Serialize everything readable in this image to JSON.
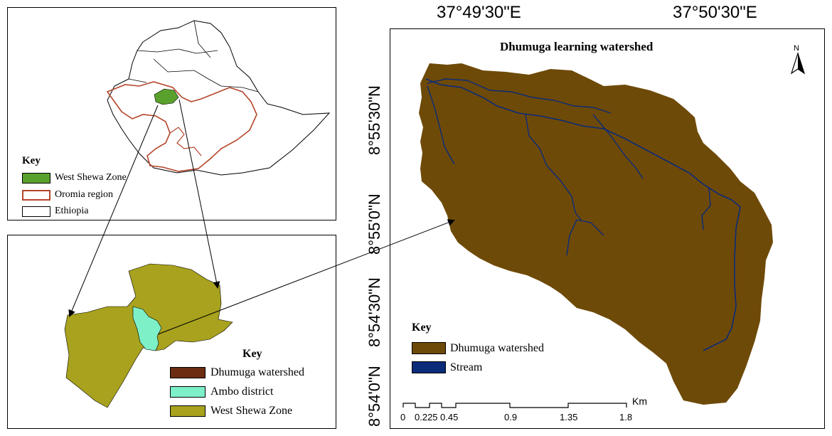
{
  "ethiopia_panel": {
    "key_title": "Key",
    "legend": [
      {
        "label": "West Shewa Zone",
        "fill": "#5aa02c",
        "border": "#000000"
      },
      {
        "label": "Oromia region",
        "fill": "#ffffff",
        "border": "#b5452a"
      },
      {
        "label": "Ethiopia",
        "fill": "#ffffff",
        "border": "#000000"
      }
    ]
  },
  "zone_panel": {
    "key_title": "Key",
    "legend": [
      {
        "label": "Dhumuga watershed",
        "fill": "#6b2c12"
      },
      {
        "label": "Ambo district",
        "fill": "#7ef0c8"
      },
      {
        "label": "West Shewa Zone",
        "fill": "#a8a21e"
      }
    ]
  },
  "watershed_panel": {
    "title": "Dhumuga learning watershed",
    "north_label": "N",
    "key_title": "Key",
    "legend": [
      {
        "label": "Dhumuga watershed",
        "fill": "#6e4a08"
      },
      {
        "label": "Stream",
        "fill": "#0a2a7a"
      }
    ],
    "longitude_labels": [
      "37°49'30\"E",
      "37°50'30\"E"
    ],
    "latitude_labels": [
      "8°55'30\"N",
      "8°55'0\"N",
      "8°54'30\"N",
      "8°54'0\"N"
    ],
    "scale_bar": {
      "unit": "Km",
      "ticks": [
        "0",
        "0.225",
        "0.45",
        "0.9",
        "1.35",
        "1.8"
      ]
    }
  },
  "colors": {
    "watershed": "#6e4a08",
    "stream": "#0a2a7a",
    "oromia_border": "#b5452a",
    "west_shewa_green": "#5aa02c",
    "zone_fill": "#a8a21e",
    "ambo_fill": "#7ef0c8"
  }
}
